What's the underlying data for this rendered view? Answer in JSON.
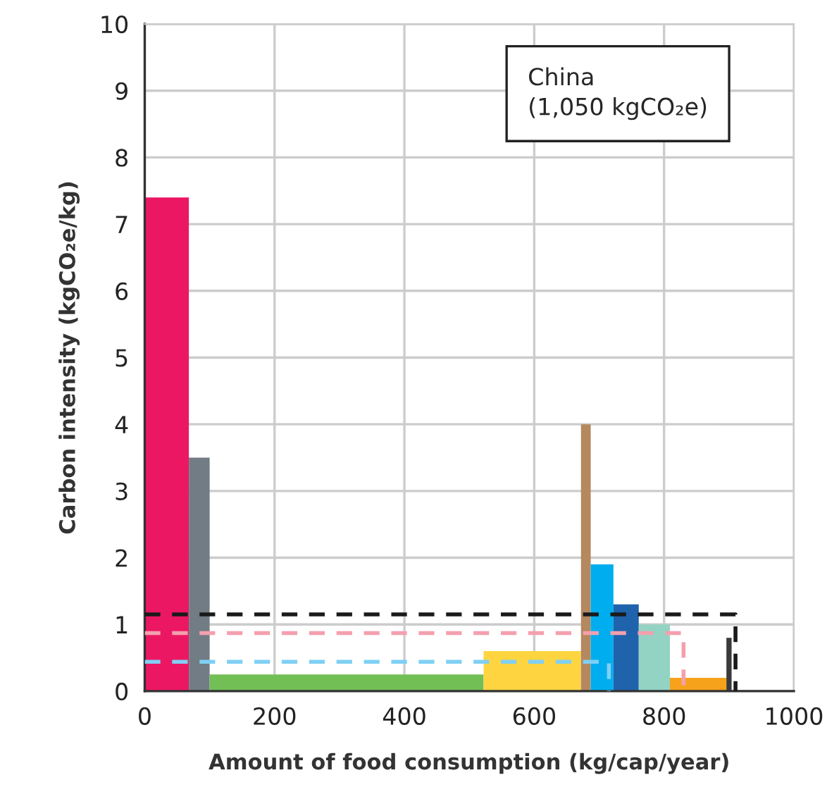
{
  "chart_data": {
    "type": "area",
    "xlabel": "Amount of food consumption (kg/cap/year)",
    "ylabel": "Carbon intensity (kgCO₂e/kg)",
    "annotations": [
      "China\n(1,050 kgCO₂e)"
    ],
    "xlim": [
      0,
      1000
    ],
    "xticks": [
      0,
      200,
      400,
      600,
      800,
      1000
    ],
    "ylim": [
      0,
      10
    ],
    "yticks": [
      0,
      1,
      2,
      3,
      4,
      5,
      6,
      7,
      8,
      9,
      10
    ],
    "grid": true,
    "series": [
      {
        "color": "#ec1763",
        "x": [
          0,
          68
        ],
        "values": [
          7.4,
          7.4
        ]
      },
      {
        "color": "#727c84",
        "x": [
          68,
          100
        ],
        "values": [
          3.5,
          3.5
        ]
      },
      {
        "color": "#72bf56",
        "x": [
          100,
          522
        ],
        "values": [
          0.25,
          0.25
        ]
      },
      {
        "color": "#fed541",
        "x": [
          522,
          672
        ],
        "values": [
          0.6,
          0.6
        ]
      },
      {
        "color": "#b5885f",
        "x": [
          672,
          687
        ],
        "values": [
          4.0,
          4.0
        ]
      },
      {
        "color": "#00aeef",
        "x": [
          687,
          722
        ],
        "values": [
          1.9,
          1.9
        ]
      },
      {
        "color": "#1f63ad",
        "x": [
          722,
          761
        ],
        "values": [
          1.3,
          1.3
        ]
      },
      {
        "color": "#93d3c3",
        "x": [
          761,
          809
        ],
        "values": [
          1.0,
          1.0
        ]
      },
      {
        "color": "#f7a21b",
        "x": [
          809,
          896
        ],
        "values": [
          0.2,
          0.2
        ]
      },
      {
        "color": "#3a3a3a",
        "x": [
          896,
          904
        ],
        "values": [
          0.8,
          0.8
        ]
      },
      {
        "type": "line",
        "line_style": "dashed",
        "color": "#7fd0f4",
        "x": [
          0,
          715,
          715
        ],
        "values": [
          0.44,
          0.44,
          0
        ]
      },
      {
        "type": "line",
        "line_style": "dashed",
        "color": "#f4a0ae",
        "x": [
          0,
          830,
          830
        ],
        "values": [
          0.87,
          0.87,
          0
        ]
      },
      {
        "type": "line",
        "line_style": "dashed",
        "color": "#1a1a1a",
        "x": [
          0,
          910,
          910
        ],
        "values": [
          1.15,
          1.15,
          0
        ]
      }
    ]
  }
}
